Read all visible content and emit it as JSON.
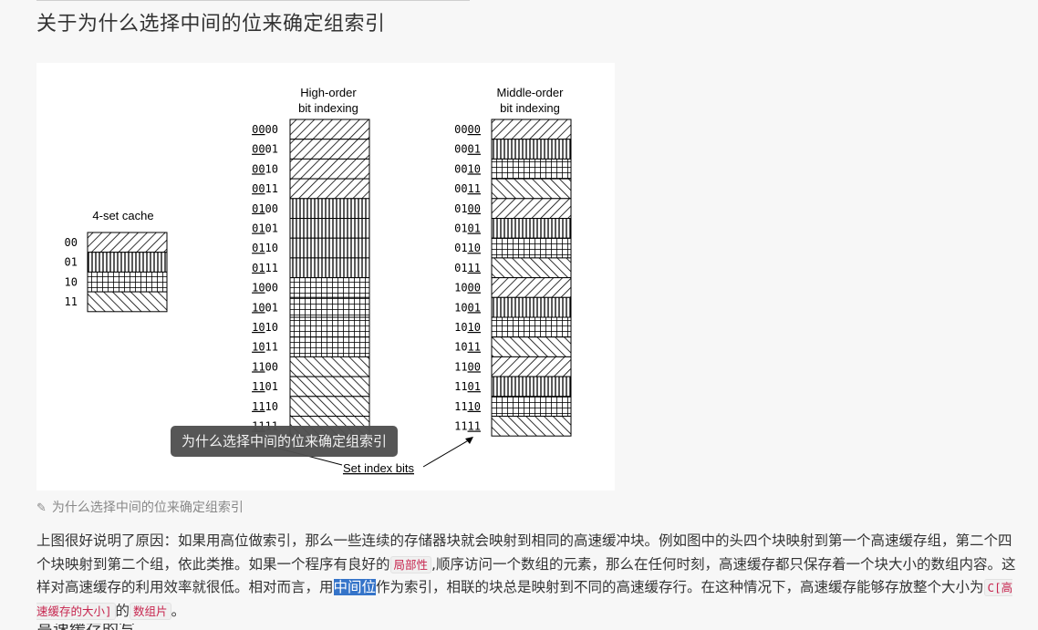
{
  "page": {
    "title": "关于为什么选择中间的位来确定组索引",
    "figure_caption": "为什么选择中间的位来确定组索引",
    "tooltip": "为什么选择中间的位来确定组索引",
    "next_heading_partial": "高速缓存的写"
  },
  "figure": {
    "cache_label": "4-set cache",
    "cache_sets": [
      "00",
      "01",
      "10",
      "11"
    ],
    "high_order_label_1": "High-order",
    "high_order_label_2": "bit indexing",
    "middle_order_label_1": "Middle-order",
    "middle_order_label_2": "bit indexing",
    "addresses": [
      "0000",
      "0001",
      "0010",
      "0011",
      "0100",
      "0101",
      "0110",
      "0111",
      "1000",
      "1001",
      "1010",
      "1011",
      "1100",
      "1101",
      "1110",
      "1111"
    ],
    "set_index_label": "Set index bits",
    "patterns": [
      "diag-right",
      "vertical",
      "grid",
      "diag-left"
    ]
  },
  "paragraph": {
    "t1": "上图很好说明了原因：如果用高位做索引，那么一些连续的存储器块就会映射到相同的高速缓冲块。例如图中的头四个块映射到第一个高速缓存组，第二个四个块映射到第二个组，依此类推。如果一个程序有良好的",
    "code1": "局部性",
    "t2": ",顺序访问一个数组的元素，那么在任何时刻，高速缓存都只保存着一个块大小的数组内容。这样对高速缓存的利用效率就很低。相对而言，用",
    "highlight": "中间位",
    "t3": "作为索引，相联的块总是映射到不同的高速缓存行。在这种情况下，高速缓存能够存放整个大小为",
    "code2": "C[高速缓存的大小]",
    "t4": "的",
    "code3": "数组片",
    "t5": "。"
  }
}
